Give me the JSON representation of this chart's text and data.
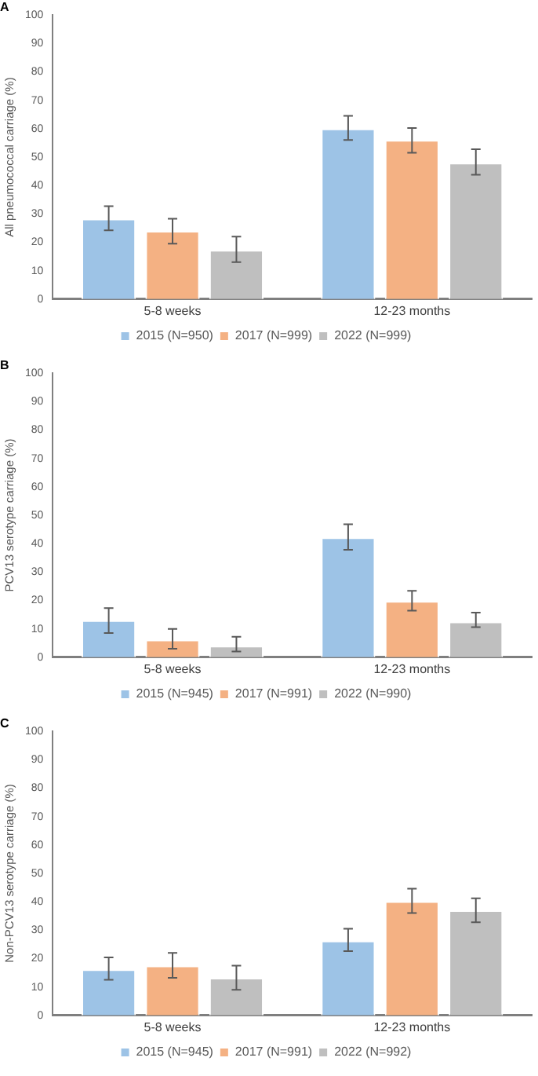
{
  "chart_data": [
    {
      "type": "bar",
      "title": "A",
      "ylabel": "All pneumococcal carriage (%)",
      "categories": [
        "5-8 weeks",
        "12-23 months"
      ],
      "ylim": [
        0,
        100
      ],
      "yticks": [
        0,
        10,
        20,
        30,
        40,
        50,
        60,
        70,
        80,
        90,
        100
      ],
      "grid": false,
      "legend": "bottom",
      "series": [
        {
          "name": "2015 (N=950)",
          "color": "#9dc3e6",
          "values": [
            28.3,
            60
          ],
          "errors": [
            [
              24.2,
              32.7
            ],
            [
              56,
              64.5
            ]
          ]
        },
        {
          "name": "2017 (N=999)",
          "color": "#f4b183",
          "values": [
            24,
            56
          ],
          "errors": [
            [
              19.5,
              28.3
            ],
            [
              51.5,
              60.2
            ]
          ]
        },
        {
          "name": "2022 (N=999)",
          "color": "#bfbfbf",
          "values": [
            17.3,
            48
          ],
          "errors": [
            [
              13,
              22
            ],
            [
              43.8,
              52.8
            ]
          ]
        }
      ]
    },
    {
      "type": "bar",
      "title": "B",
      "ylabel": "PCV13 serotype carriage (%)",
      "categories": [
        "5-8 weeks",
        "12-23 months"
      ],
      "ylim": [
        0,
        100
      ],
      "yticks": [
        0,
        10,
        20,
        30,
        40,
        50,
        60,
        70,
        80,
        90,
        100
      ],
      "grid": false,
      "legend": "bottom",
      "series": [
        {
          "name": "2015 (N=945)",
          "color": "#9dc3e6",
          "values": [
            13,
            42.2
          ],
          "errors": [
            [
              8.5,
              17.3
            ],
            [
              37.8,
              46.8
            ]
          ]
        },
        {
          "name": "2017 (N=991)",
          "color": "#f4b183",
          "values": [
            6.2,
            19.8
          ],
          "errors": [
            [
              3,
              10
            ],
            [
              16.4,
              23.4
            ]
          ]
        },
        {
          "name": "2022 (N=990)",
          "color": "#bfbfbf",
          "values": [
            4,
            12.5
          ],
          "errors": [
            [
              2,
              7.2
            ],
            [
              10.6,
              15.7
            ]
          ]
        }
      ]
    },
    {
      "type": "bar",
      "title": "C",
      "ylabel": "Non-PCV13 serotype carriage (%)",
      "categories": [
        "5-8 weeks",
        "12-23 months"
      ],
      "ylim": [
        0,
        100
      ],
      "yticks": [
        0,
        10,
        20,
        30,
        40,
        50,
        60,
        70,
        80,
        90,
        100
      ],
      "grid": false,
      "legend": "bottom",
      "series": [
        {
          "name": "2015 (N=945)",
          "color": "#9dc3e6",
          "values": [
            16.2,
            26.3
          ],
          "errors": [
            [
              12.5,
              20.4
            ],
            [
              22.6,
              30.5
            ]
          ]
        },
        {
          "name": "2017 (N=991)",
          "color": "#f4b183",
          "values": [
            17.5,
            40.2
          ],
          "errors": [
            [
              13.2,
              22
            ],
            [
              36,
              44.6
            ]
          ]
        },
        {
          "name": "2022 (N=992)",
          "color": "#bfbfbf",
          "values": [
            13.2,
            37
          ],
          "errors": [
            [
              9,
              17.5
            ],
            [
              32.8,
              41.2
            ]
          ]
        }
      ]
    }
  ]
}
